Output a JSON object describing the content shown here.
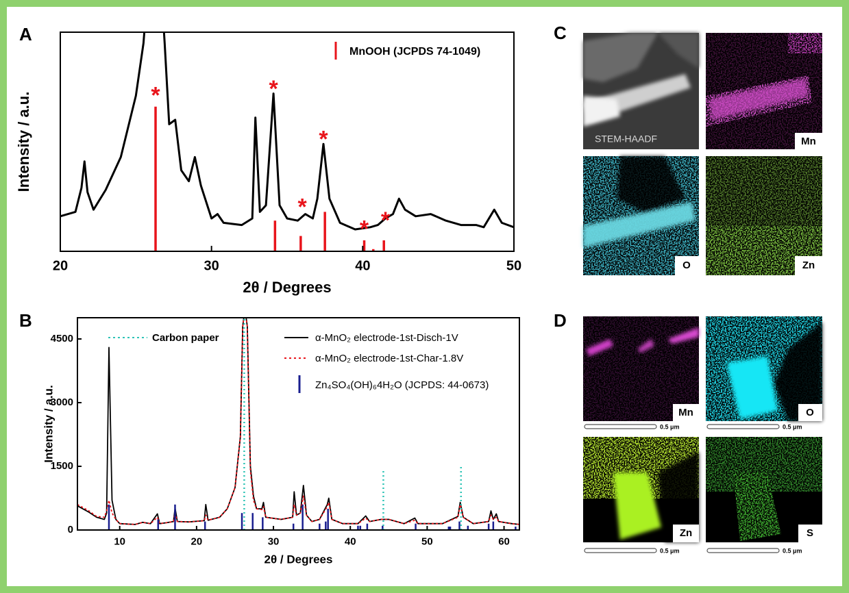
{
  "chart_data": [
    {
      "type": "line",
      "panel": "A",
      "xlabel": "2θ / Degrees",
      "ylabel": "Intensity / a.u.",
      "xlim": [
        20,
        50
      ],
      "xticks": [
        20,
        30,
        40,
        50
      ],
      "ylim": [
        0,
        100
      ],
      "series": [
        {
          "kind": "line",
          "color": "#000000",
          "x": [
            20,
            21,
            21.4,
            21.6,
            21.8,
            22.2,
            23,
            24,
            25,
            25.5,
            26,
            26.5,
            26.9,
            27.2,
            27.6,
            28,
            28.5,
            28.9,
            29.3,
            30,
            30.4,
            30.8,
            32,
            32.7,
            32.9,
            33.2,
            33.6,
            34.1,
            34.5,
            35,
            35.7,
            36.2,
            36.7,
            37,
            37.4,
            37.8,
            38.5,
            39.5,
            40.5,
            41,
            41.5,
            42,
            42.4,
            42.8,
            43.5,
            44.5,
            45.5,
            46.5,
            47.5,
            48,
            48.7,
            49.2,
            50
          ],
          "values": [
            16,
            18,
            29,
            41,
            27,
            19,
            28,
            43,
            71,
            95,
            140,
            140,
            95,
            58,
            60,
            37,
            32,
            43,
            30,
            15,
            17,
            13,
            12,
            15,
            61,
            18,
            21,
            72,
            21,
            15,
            14,
            17,
            15,
            24,
            49,
            24,
            13,
            10,
            11,
            12,
            15,
            17,
            24,
            19,
            16,
            17,
            14,
            12,
            12,
            11,
            19,
            13,
            11
          ]
        },
        {
          "kind": "stick",
          "name": "MnOOH (JCPDS 74-1049)",
          "color": "#e8141b",
          "x": [
            26.3,
            34.2,
            35.9,
            37.5,
            40.1,
            40.7,
            41.4
          ],
          "values": [
            66,
            14,
            7,
            18,
            5,
            1,
            5
          ]
        }
      ],
      "annotations": [
        {
          "text": "*",
          "x": 26.3,
          "y": 73
        },
        {
          "text": "*",
          "x": 34.1,
          "y": 76
        },
        {
          "text": "*",
          "x": 36.0,
          "y": 22
        },
        {
          "text": "*",
          "x": 37.4,
          "y": 53
        },
        {
          "text": "*",
          "x": 40.1,
          "y": 12
        },
        {
          "text": "*",
          "x": 41.5,
          "y": 16
        }
      ]
    },
    {
      "type": "line",
      "panel": "B",
      "xlabel": "2θ / Degrees",
      "ylabel": "Intensity / a.u.",
      "xlim": [
        4.5,
        62
      ],
      "xticks": [
        10,
        20,
        30,
        40,
        50,
        60
      ],
      "ylim": [
        0,
        5000
      ],
      "yticks": [
        0,
        1500,
        3000,
        4500
      ],
      "series": [
        {
          "kind": "line",
          "name": "α-MnO₂ electrode-1st-Disch-1V",
          "color": "#000000",
          "x": [
            4.5,
            6,
            7,
            8,
            8.3,
            8.6,
            9,
            9.5,
            10,
            12,
            13,
            14,
            14.9,
            15.2,
            16,
            17,
            17.2,
            17.5,
            19,
            21,
            21.2,
            21.5,
            23,
            24,
            25,
            25.7,
            26,
            26.3,
            26.6,
            27,
            27.4,
            27.8,
            28.5,
            28.7,
            29,
            31,
            32.5,
            32.7,
            33,
            33.5,
            33.9,
            34.3,
            35,
            36,
            37,
            37.2,
            37.6,
            39,
            41,
            42,
            42.5,
            44,
            45,
            47,
            48.4,
            48.8,
            52,
            54,
            54.3,
            54.7,
            56,
            58,
            58.3,
            58.6,
            59,
            59.3,
            61,
            62
          ],
          "values": [
            570,
            420,
            300,
            250,
            400,
            4300,
            700,
            250,
            150,
            130,
            180,
            150,
            380,
            150,
            170,
            200,
            520,
            200,
            190,
            220,
            600,
            230,
            300,
            500,
            1000,
            2200,
            4800,
            5200,
            4800,
            1500,
            800,
            500,
            500,
            650,
            300,
            250,
            300,
            900,
            350,
            400,
            1050,
            350,
            200,
            250,
            600,
            750,
            250,
            150,
            150,
            330,
            200,
            250,
            250,
            150,
            280,
            150,
            150,
            320,
            650,
            300,
            150,
            200,
            450,
            250,
            380,
            200,
            150,
            130
          ]
        },
        {
          "kind": "line",
          "style": "dotted",
          "name": "α-MnO₂ electrode-1st-Char-1.8V",
          "color": "#e8141b",
          "x": [
            4.5,
            6,
            7,
            8,
            8.3,
            8.6,
            9,
            9.5,
            10,
            12,
            13,
            14,
            14.9,
            15.2,
            16,
            17,
            17.2,
            17.5,
            19,
            21,
            21.2,
            21.5,
            23,
            24,
            25,
            25.7,
            26,
            26.3,
            26.6,
            27,
            27.4,
            27.8,
            28.5,
            28.7,
            29,
            31,
            32.5,
            32.7,
            33,
            33.5,
            33.9,
            34.3,
            35,
            36,
            37,
            37.2,
            37.6,
            39,
            41,
            42,
            42.5,
            44,
            45,
            47,
            48.4,
            48.8,
            52,
            54,
            54.3,
            54.7,
            56,
            58,
            58.3,
            58.6,
            59,
            59.3,
            61,
            62
          ],
          "values": [
            600,
            450,
            320,
            300,
            450,
            700,
            400,
            250,
            150,
            130,
            180,
            150,
            300,
            150,
            170,
            200,
            400,
            200,
            190,
            220,
            350,
            230,
            300,
            500,
            1000,
            2200,
            4800,
            5200,
            4800,
            1400,
            700,
            500,
            480,
            550,
            300,
            250,
            300,
            600,
            350,
            400,
            800,
            350,
            200,
            250,
            550,
            650,
            250,
            150,
            150,
            280,
            200,
            250,
            250,
            150,
            230,
            150,
            150,
            300,
            600,
            300,
            150,
            200,
            350,
            250,
            300,
            200,
            150,
            130
          ]
        },
        {
          "kind": "stick",
          "name": "Zn₄SO₄(OH)₆4H₂O (JCPDS: 44-0673)",
          "color": "#1a1f8f",
          "x": [
            8.6,
            15,
            17.2,
            21.1,
            25.9,
            27.3,
            28.6,
            32.6,
            33.8,
            36,
            36.8,
            37.1,
            41,
            41.3,
            42.2,
            44.2,
            48.5,
            52.8,
            53,
            54.2,
            55.3,
            58,
            58.6,
            61.5
          ],
          "values": [
            600,
            250,
            600,
            200,
            400,
            400,
            300,
            150,
            600,
            150,
            200,
            500,
            100,
            100,
            150,
            100,
            150,
            80,
            80,
            200,
            100,
            150,
            200,
            80
          ]
        },
        {
          "kind": "stick",
          "style": "dotted",
          "name": "Carbon paper",
          "color": "#2ec4b6",
          "x": [
            26.2,
            44.3,
            54.4
          ],
          "values": [
            5000,
            1450,
            1500
          ]
        }
      ]
    }
  ],
  "maps": {
    "C": {
      "panel": "C",
      "tiles": [
        {
          "label": "STEM-HAADF"
        },
        {
          "label": "Mn"
        },
        {
          "label": "O"
        },
        {
          "label": "Zn"
        }
      ]
    },
    "D": {
      "panel": "D",
      "scale_bar": "0.5 μm",
      "tiles": [
        {
          "label": "Mn"
        },
        {
          "label": "O"
        },
        {
          "label": "Zn"
        },
        {
          "label": "S"
        }
      ]
    }
  }
}
